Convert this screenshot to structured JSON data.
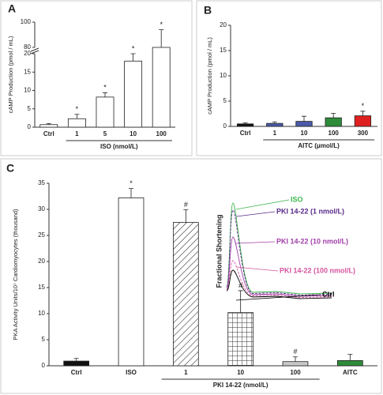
{
  "chart_data": [
    {
      "type": "bar",
      "panel_label": "A",
      "ylabel": "cAMP Production (pmol / mL)",
      "xlabel": "ISO (nmol/L)",
      "categories": [
        "Ctrl",
        "1",
        "5",
        "10",
        "100"
      ],
      "values": [
        0.7,
        2.3,
        8.2,
        18,
        80
      ],
      "errors": [
        0.3,
        1.2,
        1.2,
        2,
        14
      ],
      "significance": [
        null,
        "*",
        "*",
        "*",
        "*"
      ],
      "colors": [
        "#ffffff",
        "#ffffff",
        "#ffffff",
        "#ffffff",
        "#ffffff"
      ],
      "ylim": [
        0,
        100
      ],
      "axis_break": [
        20,
        80
      ],
      "yticks": [
        0,
        5,
        10,
        15,
        20,
        80,
        100
      ]
    },
    {
      "type": "bar",
      "panel_label": "B",
      "ylabel": "cAMP Production (pmol / mL)",
      "xlabel": "AITC (μmol/L)",
      "categories": [
        "Ctrl",
        "1",
        "10",
        "100",
        "300"
      ],
      "values": [
        0.5,
        0.6,
        1.0,
        1.7,
        2.1
      ],
      "errors": [
        0.2,
        0.3,
        1.0,
        0.9,
        0.9
      ],
      "significance": [
        null,
        null,
        null,
        null,
        "*"
      ],
      "colors": [
        "#111111",
        "#4a5aa8",
        "#4a5aa8",
        "#2e8b3a",
        "#e02020"
      ],
      "ylim": [
        0,
        20
      ],
      "yticks": [
        0,
        5,
        10,
        15,
        20
      ]
    },
    {
      "type": "bar",
      "panel_label": "C",
      "ylabel": "PKA Activity Units/10⁷ Cardiomyocytes (thousand)",
      "xlabel": "PKI 14-22 (nmol/L)",
      "categories": [
        "Ctrl",
        "ISO",
        "1",
        "10",
        "100",
        "AITC"
      ],
      "values": [
        0.9,
        32.2,
        27.5,
        10.2,
        0.8,
        1.0
      ],
      "errors": [
        0.5,
        1.8,
        2.4,
        4.2,
        0.9,
        1.2
      ],
      "significance": [
        null,
        "*",
        "#",
        "#",
        "#",
        null
      ],
      "colors": [
        "#111111",
        "#ffffff",
        "#ffffff",
        "#ffffff",
        "#c8c8c8",
        "#2e8b3a"
      ],
      "patterns": [
        null,
        null,
        "diagonal",
        "grid",
        null,
        null
      ],
      "ylim": [
        0,
        35
      ],
      "yticks": [
        0,
        5,
        10,
        15,
        20,
        25,
        30,
        35
      ],
      "inset": {
        "ylabel": "Fractional Shortening",
        "labels": [
          {
            "text": "ISO",
            "color": "#3cb44b"
          },
          {
            "text": "PKI 14-22 (1 nmol/L)",
            "color": "#5a2a8a"
          },
          {
            "text": "PKI 14-22 (10 nmol/L)",
            "color": "#a040a8"
          },
          {
            "text": "PKI 14-22 (100 nmol/L)",
            "color": "#d6559e"
          },
          {
            "text": "Ctrl",
            "color": "#000000"
          }
        ]
      }
    }
  ]
}
